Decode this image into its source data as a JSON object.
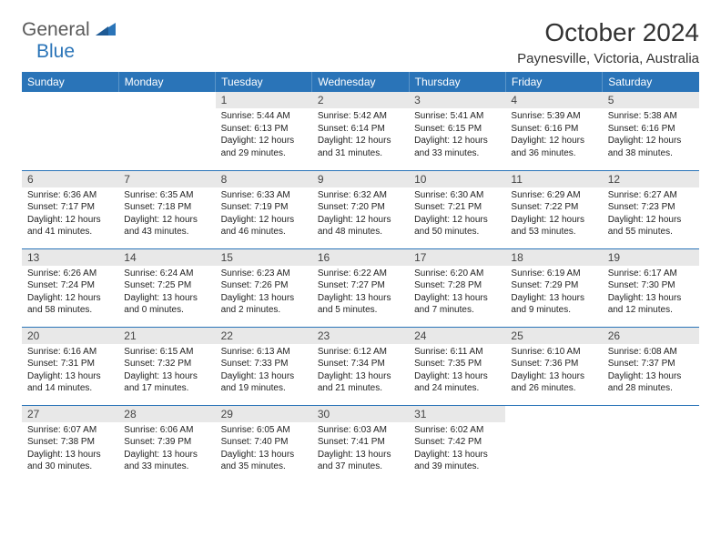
{
  "logo": {
    "general": "General",
    "blue": "Blue"
  },
  "title": "October 2024",
  "location": "Paynesville, Victoria, Australia",
  "colors": {
    "header_bg": "#2a74b8",
    "header_text": "#ffffff",
    "daynum_bg": "#e8e8e8",
    "row_border": "#2a74b8"
  },
  "weekdays": [
    "Sunday",
    "Monday",
    "Tuesday",
    "Wednesday",
    "Thursday",
    "Friday",
    "Saturday"
  ],
  "weeks": [
    [
      null,
      null,
      {
        "n": "1",
        "rise": "Sunrise: 5:44 AM",
        "set": "Sunset: 6:13 PM",
        "dl1": "Daylight: 12 hours",
        "dl2": "and 29 minutes."
      },
      {
        "n": "2",
        "rise": "Sunrise: 5:42 AM",
        "set": "Sunset: 6:14 PM",
        "dl1": "Daylight: 12 hours",
        "dl2": "and 31 minutes."
      },
      {
        "n": "3",
        "rise": "Sunrise: 5:41 AM",
        "set": "Sunset: 6:15 PM",
        "dl1": "Daylight: 12 hours",
        "dl2": "and 33 minutes."
      },
      {
        "n": "4",
        "rise": "Sunrise: 5:39 AM",
        "set": "Sunset: 6:16 PM",
        "dl1": "Daylight: 12 hours",
        "dl2": "and 36 minutes."
      },
      {
        "n": "5",
        "rise": "Sunrise: 5:38 AM",
        "set": "Sunset: 6:16 PM",
        "dl1": "Daylight: 12 hours",
        "dl2": "and 38 minutes."
      }
    ],
    [
      {
        "n": "6",
        "rise": "Sunrise: 6:36 AM",
        "set": "Sunset: 7:17 PM",
        "dl1": "Daylight: 12 hours",
        "dl2": "and 41 minutes."
      },
      {
        "n": "7",
        "rise": "Sunrise: 6:35 AM",
        "set": "Sunset: 7:18 PM",
        "dl1": "Daylight: 12 hours",
        "dl2": "and 43 minutes."
      },
      {
        "n": "8",
        "rise": "Sunrise: 6:33 AM",
        "set": "Sunset: 7:19 PM",
        "dl1": "Daylight: 12 hours",
        "dl2": "and 46 minutes."
      },
      {
        "n": "9",
        "rise": "Sunrise: 6:32 AM",
        "set": "Sunset: 7:20 PM",
        "dl1": "Daylight: 12 hours",
        "dl2": "and 48 minutes."
      },
      {
        "n": "10",
        "rise": "Sunrise: 6:30 AM",
        "set": "Sunset: 7:21 PM",
        "dl1": "Daylight: 12 hours",
        "dl2": "and 50 minutes."
      },
      {
        "n": "11",
        "rise": "Sunrise: 6:29 AM",
        "set": "Sunset: 7:22 PM",
        "dl1": "Daylight: 12 hours",
        "dl2": "and 53 minutes."
      },
      {
        "n": "12",
        "rise": "Sunrise: 6:27 AM",
        "set": "Sunset: 7:23 PM",
        "dl1": "Daylight: 12 hours",
        "dl2": "and 55 minutes."
      }
    ],
    [
      {
        "n": "13",
        "rise": "Sunrise: 6:26 AM",
        "set": "Sunset: 7:24 PM",
        "dl1": "Daylight: 12 hours",
        "dl2": "and 58 minutes."
      },
      {
        "n": "14",
        "rise": "Sunrise: 6:24 AM",
        "set": "Sunset: 7:25 PM",
        "dl1": "Daylight: 13 hours",
        "dl2": "and 0 minutes."
      },
      {
        "n": "15",
        "rise": "Sunrise: 6:23 AM",
        "set": "Sunset: 7:26 PM",
        "dl1": "Daylight: 13 hours",
        "dl2": "and 2 minutes."
      },
      {
        "n": "16",
        "rise": "Sunrise: 6:22 AM",
        "set": "Sunset: 7:27 PM",
        "dl1": "Daylight: 13 hours",
        "dl2": "and 5 minutes."
      },
      {
        "n": "17",
        "rise": "Sunrise: 6:20 AM",
        "set": "Sunset: 7:28 PM",
        "dl1": "Daylight: 13 hours",
        "dl2": "and 7 minutes."
      },
      {
        "n": "18",
        "rise": "Sunrise: 6:19 AM",
        "set": "Sunset: 7:29 PM",
        "dl1": "Daylight: 13 hours",
        "dl2": "and 9 minutes."
      },
      {
        "n": "19",
        "rise": "Sunrise: 6:17 AM",
        "set": "Sunset: 7:30 PM",
        "dl1": "Daylight: 13 hours",
        "dl2": "and 12 minutes."
      }
    ],
    [
      {
        "n": "20",
        "rise": "Sunrise: 6:16 AM",
        "set": "Sunset: 7:31 PM",
        "dl1": "Daylight: 13 hours",
        "dl2": "and 14 minutes."
      },
      {
        "n": "21",
        "rise": "Sunrise: 6:15 AM",
        "set": "Sunset: 7:32 PM",
        "dl1": "Daylight: 13 hours",
        "dl2": "and 17 minutes."
      },
      {
        "n": "22",
        "rise": "Sunrise: 6:13 AM",
        "set": "Sunset: 7:33 PM",
        "dl1": "Daylight: 13 hours",
        "dl2": "and 19 minutes."
      },
      {
        "n": "23",
        "rise": "Sunrise: 6:12 AM",
        "set": "Sunset: 7:34 PM",
        "dl1": "Daylight: 13 hours",
        "dl2": "and 21 minutes."
      },
      {
        "n": "24",
        "rise": "Sunrise: 6:11 AM",
        "set": "Sunset: 7:35 PM",
        "dl1": "Daylight: 13 hours",
        "dl2": "and 24 minutes."
      },
      {
        "n": "25",
        "rise": "Sunrise: 6:10 AM",
        "set": "Sunset: 7:36 PM",
        "dl1": "Daylight: 13 hours",
        "dl2": "and 26 minutes."
      },
      {
        "n": "26",
        "rise": "Sunrise: 6:08 AM",
        "set": "Sunset: 7:37 PM",
        "dl1": "Daylight: 13 hours",
        "dl2": "and 28 minutes."
      }
    ],
    [
      {
        "n": "27",
        "rise": "Sunrise: 6:07 AM",
        "set": "Sunset: 7:38 PM",
        "dl1": "Daylight: 13 hours",
        "dl2": "and 30 minutes."
      },
      {
        "n": "28",
        "rise": "Sunrise: 6:06 AM",
        "set": "Sunset: 7:39 PM",
        "dl1": "Daylight: 13 hours",
        "dl2": "and 33 minutes."
      },
      {
        "n": "29",
        "rise": "Sunrise: 6:05 AM",
        "set": "Sunset: 7:40 PM",
        "dl1": "Daylight: 13 hours",
        "dl2": "and 35 minutes."
      },
      {
        "n": "30",
        "rise": "Sunrise: 6:03 AM",
        "set": "Sunset: 7:41 PM",
        "dl1": "Daylight: 13 hours",
        "dl2": "and 37 minutes."
      },
      {
        "n": "31",
        "rise": "Sunrise: 6:02 AM",
        "set": "Sunset: 7:42 PM",
        "dl1": "Daylight: 13 hours",
        "dl2": "and 39 minutes."
      },
      null,
      null
    ]
  ]
}
